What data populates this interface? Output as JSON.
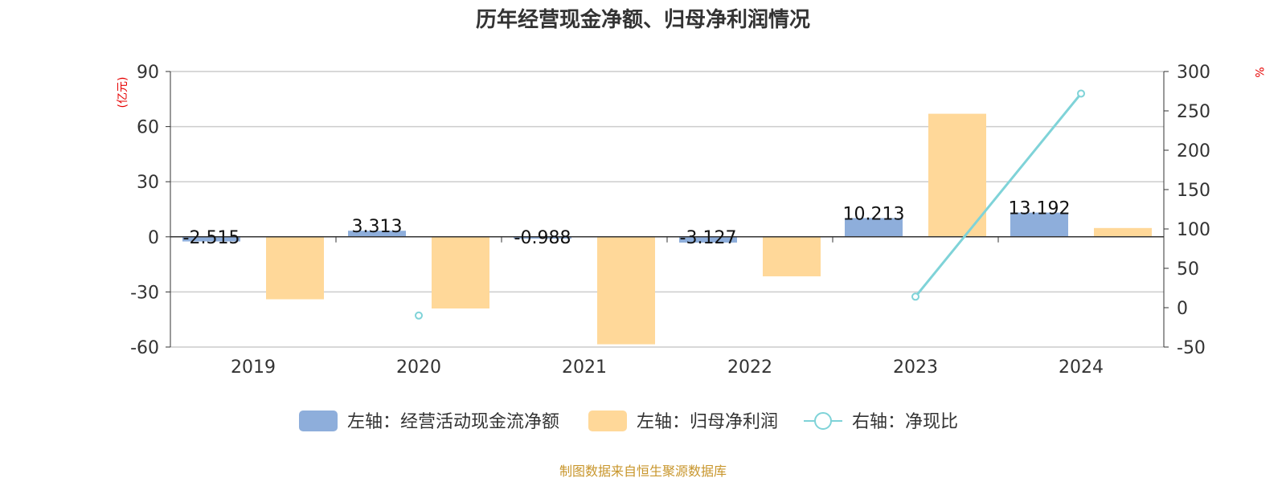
{
  "chart_data": {
    "type": "bar",
    "title": "历年经营现金净额、归母净利润情况",
    "categories": [
      "2019",
      "2020",
      "2021",
      "2022",
      "2023",
      "2024"
    ],
    "left_axis": {
      "unit": "(亿元)",
      "range": [
        -60,
        90
      ],
      "ticks": [
        "90",
        "60",
        "30",
        "0",
        "-30",
        "-60"
      ]
    },
    "right_axis": {
      "unit": "%",
      "range": [
        -50,
        300
      ],
      "ticks": [
        "300",
        "250",
        "200",
        "150",
        "100",
        "50",
        "0",
        "-50"
      ]
    },
    "series": [
      {
        "name": "左轴：经营活动现金流净额",
        "type": "bar",
        "axis": "left",
        "color": "#8eaedb",
        "values": [
          -2.515,
          3.313,
          -0.988,
          -3.127,
          10.213,
          13.192
        ],
        "labels": [
          "-2.515",
          "3.313",
          "-0.988",
          "-3.127",
          "10.213",
          "13.192"
        ]
      },
      {
        "name": "左轴：归母净利润",
        "type": "bar",
        "axis": "left",
        "color": "#ffd899",
        "values": [
          -34,
          -39,
          -58.5,
          -21.5,
          67,
          4.8
        ]
      },
      {
        "name": "右轴：净现比",
        "type": "line",
        "axis": "right",
        "color": "#7fd3d8",
        "values": [
          null,
          -10,
          null,
          null,
          14,
          272
        ]
      }
    ],
    "grid": true,
    "legend_position": "bottom"
  },
  "source": "制图数据来自恒生聚源数据库"
}
